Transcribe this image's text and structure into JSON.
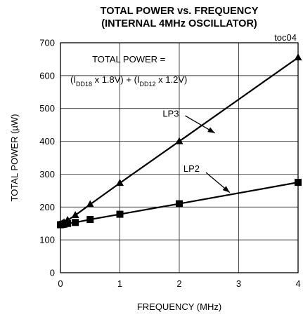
{
  "chart_data": {
    "type": "line",
    "title": "TOTAL POWER vs. FREQUENCY",
    "subtitle": "(INTERNAL 4MHz OSCILLATOR)",
    "tag": "toc04",
    "xlabel": "FREQUENCY (MHz)",
    "ylabel": "TOTAL POWER (µW)",
    "xlim": [
      0,
      4
    ],
    "ylim": [
      0,
      700
    ],
    "xticks": [
      0,
      1,
      2,
      3,
      4
    ],
    "yticks": [
      0,
      100,
      200,
      300,
      400,
      500,
      600,
      700
    ],
    "grid": true,
    "formula": {
      "line1": "TOTAL POWER =",
      "part_a": "(I",
      "sub_a": "DD18",
      "part_b": " x 1.8V) + (I",
      "sub_b": "DD12",
      "part_c": " x 1.2V)"
    },
    "series": [
      {
        "name": "LP3",
        "marker": "triangle",
        "x": [
          0.0,
          0.03,
          0.06,
          0.12,
          0.25,
          0.5,
          1.0,
          2.0,
          4.0
        ],
        "y": [
          148,
          150,
          153,
          160,
          175,
          208,
          273,
          400,
          655
        ]
      },
      {
        "name": "LP2",
        "marker": "square",
        "x": [
          0.0,
          0.03,
          0.06,
          0.12,
          0.25,
          0.5,
          1.0,
          2.0,
          4.0
        ],
        "y": [
          146,
          147,
          148,
          150,
          153,
          162,
          178,
          210,
          275
        ]
      }
    ]
  }
}
